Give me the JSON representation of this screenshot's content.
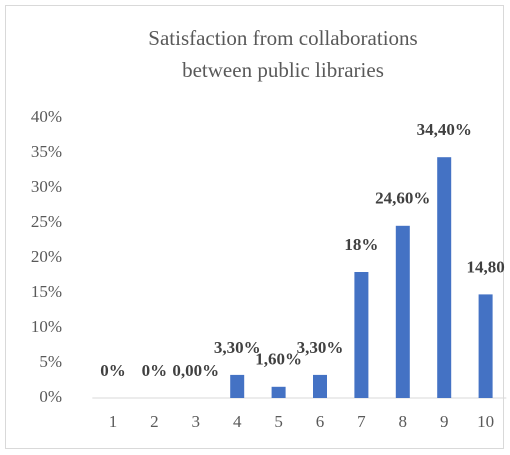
{
  "chart_data": {
    "type": "bar",
    "title": [
      "Satisfaction from collaborations",
      "between public libraries"
    ],
    "categories": [
      "1",
      "2",
      "3",
      "4",
      "5",
      "6",
      "7",
      "8",
      "9",
      "10"
    ],
    "values": [
      0,
      0,
      0,
      3.3,
      1.6,
      3.3,
      18,
      24.6,
      34.4,
      14.8
    ],
    "value_labels": [
      "0%",
      "0%",
      "0,00%",
      "3,30%",
      "1,60%",
      "3,30%",
      "18%",
      "24,60%",
      "34,40%",
      "14,80"
    ],
    "color": "#4472c4",
    "ylim": [
      0,
      40
    ],
    "yticks": [
      {
        "value": 0,
        "label": "0%"
      },
      {
        "value": 5,
        "label": "5%"
      },
      {
        "value": 10,
        "label": "10%"
      },
      {
        "value": 15,
        "label": "15%"
      },
      {
        "value": 20,
        "label": "20%"
      },
      {
        "value": 25,
        "label": "25%"
      },
      {
        "value": 30,
        "label": "30%"
      },
      {
        "value": 35,
        "label": "35%"
      },
      {
        "value": 40,
        "label": "40%"
      }
    ],
    "grid": false
  }
}
